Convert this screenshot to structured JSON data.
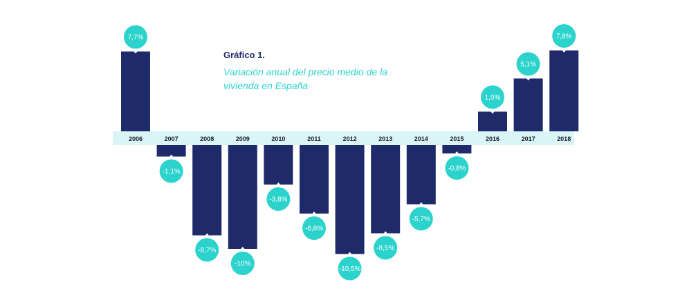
{
  "chart_data": {
    "type": "bar",
    "title": "Gráfico 1.",
    "subtitle": "Variación anual del precio medio de la vivienda en España",
    "categories": [
      "2006",
      "2007",
      "2008",
      "2009",
      "2010",
      "2011",
      "2012",
      "2013",
      "2014",
      "2015",
      "2016",
      "2017",
      "2018"
    ],
    "values": [
      7.7,
      -1.1,
      -8.7,
      -10,
      -3.8,
      -6.6,
      -10.5,
      -8.5,
      -5.7,
      -0.8,
      1.9,
      5.1,
      7.8
    ],
    "data_labels": [
      "7,7%",
      "-1,1%",
      "-8,7%",
      "-10%",
      "-3,8%",
      "-6,6%",
      "-10,5%",
      "-8,5%",
      "-5,7%",
      "-0,8%",
      "1,9%",
      "5,1%",
      "7,8%"
    ],
    "bar_color": "#1f2a6b",
    "bubble_color": "#2bd3cc",
    "axis_band_color": "#d9f5f5",
    "grid": false,
    "legend": "none"
  }
}
